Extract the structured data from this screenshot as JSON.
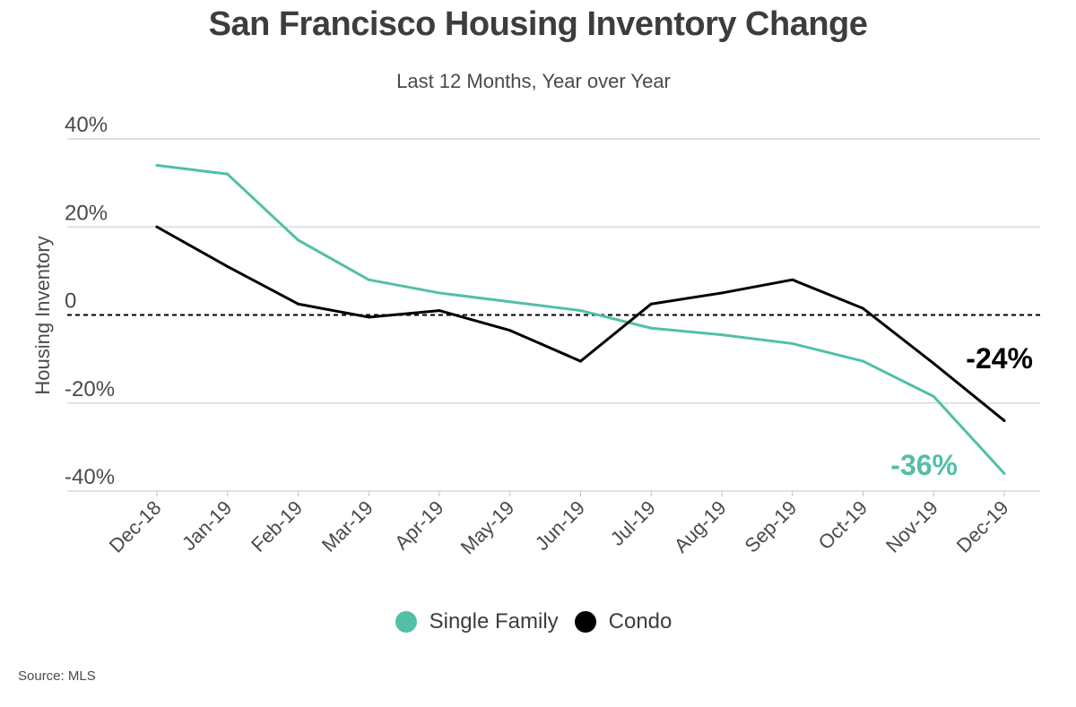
{
  "title": "San Francisco Housing Inventory Change",
  "subtitle": "Last 12 Months, Year over Year",
  "source": "Source:  MLS",
  "legend": [
    {
      "label": "Single Family",
      "color": "#52bfa8"
    },
    {
      "label": "Condo",
      "color": "#000000"
    }
  ],
  "annotations": {
    "single_family_last": "-36%",
    "condo_last": "-24%"
  },
  "chart_data": {
    "type": "line",
    "title": "San Francisco Housing Inventory Change",
    "subtitle": "Last 12 Months, Year over Year",
    "xlabel": "",
    "ylabel": "Housing Inventory",
    "ylim": [
      -40,
      40
    ],
    "yticks": [
      {
        "value": 40,
        "label": "40%"
      },
      {
        "value": 20,
        "label": "20%"
      },
      {
        "value": 0,
        "label": "0"
      },
      {
        "value": -20,
        "label": "-20%"
      },
      {
        "value": -40,
        "label": "-40%"
      }
    ],
    "grid": true,
    "zero_line": "dashed",
    "legend_position": "bottom",
    "categories": [
      "Dec-18",
      "Jan-19",
      "Feb-19",
      "Mar-19",
      "Apr-19",
      "May-19",
      "Jun-19",
      "Jul-19",
      "Aug-19",
      "Sep-19",
      "Oct-19",
      "Nov-19",
      "Dec-19"
    ],
    "series": [
      {
        "name": "Single Family",
        "color": "#52bfa8",
        "values": [
          34,
          32,
          17,
          8,
          5,
          3,
          1,
          -3,
          -4.5,
          -6.5,
          -10.5,
          -18.5,
          -36
        ]
      },
      {
        "name": "Condo",
        "color": "#000000",
        "values": [
          20,
          11,
          2.5,
          -0.5,
          1,
          -3.5,
          -10.5,
          2.5,
          5,
          8,
          1.5,
          -11,
          -24
        ]
      }
    ]
  }
}
